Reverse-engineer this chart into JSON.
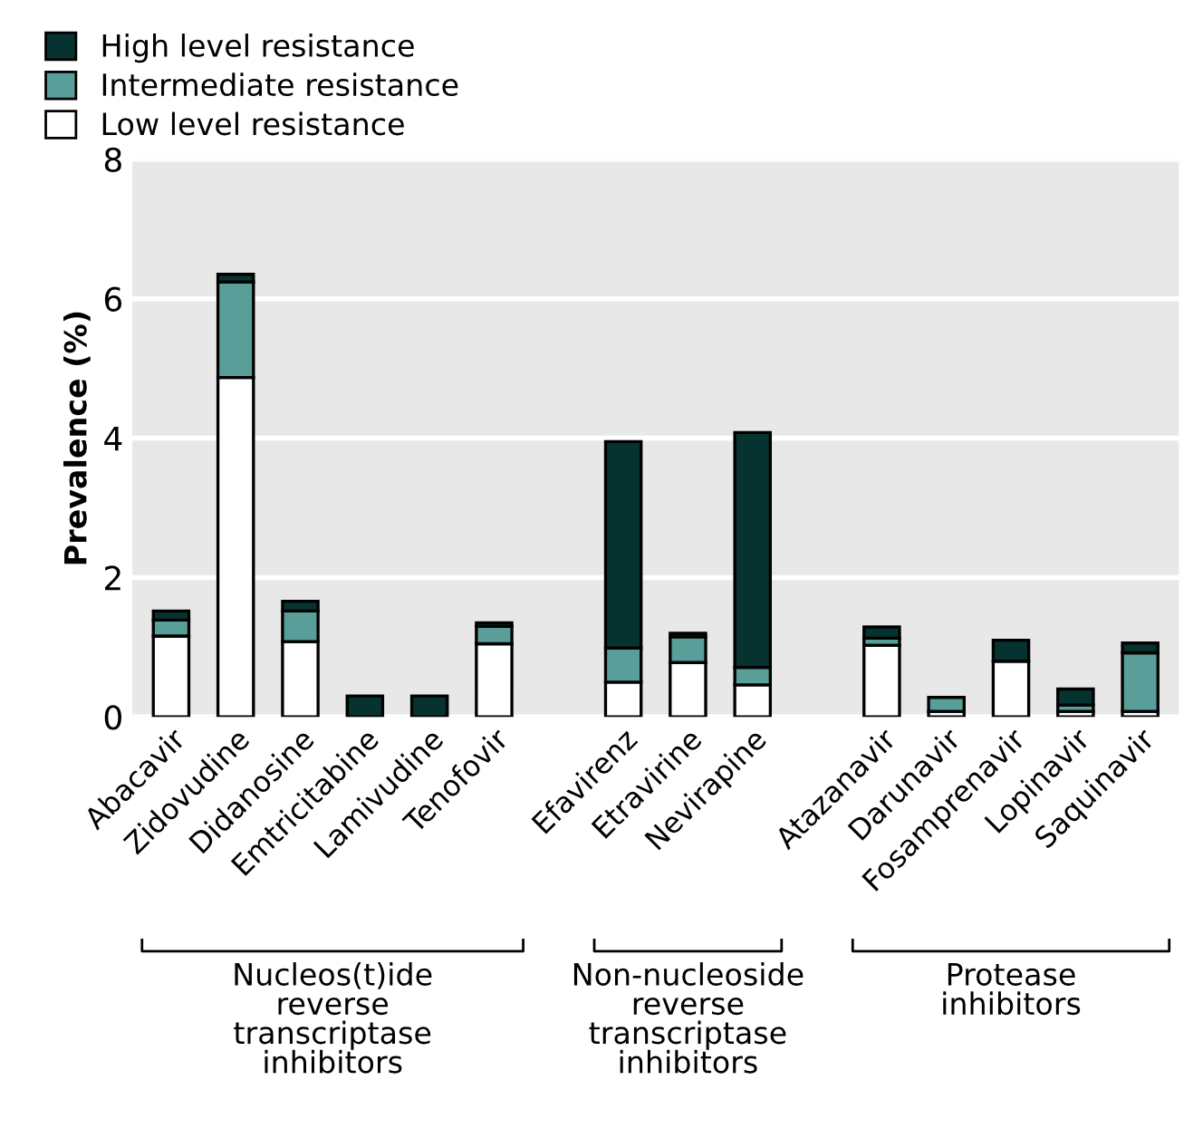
{
  "chart_data": {
    "type": "bar",
    "stacked": true,
    "ylabel": "Prevalence (%)",
    "categories": [
      "Abacavir",
      "Zidovudine",
      "Didanosine",
      "Emtricitabine",
      "Lamivudine",
      "Tenofovir",
      null,
      "Efavirenz",
      "Etravirine",
      "Nevirapine",
      null,
      "Atazanavir",
      "Darunavir",
      "Fosamprenavir",
      "Lopinavir",
      "Saquinavir"
    ],
    "series": [
      {
        "name": "Low level resistance",
        "color": "#ffffff",
        "values": [
          1.16,
          4.87,
          1.08,
          0,
          0,
          1.05,
          null,
          0.5,
          0.78,
          0.46,
          null,
          1.03,
          0.08,
          0.8,
          0.08,
          0.08
        ]
      },
      {
        "name": "Intermediate resistance",
        "color": "#5a9e9a",
        "values": [
          0.23,
          1.37,
          0.44,
          0,
          0,
          0.25,
          null,
          0.49,
          0.37,
          0.25,
          null,
          0.1,
          0.2,
          0,
          0.09,
          0.84
        ]
      },
      {
        "name": "High level resistance",
        "color": "#06332f",
        "values": [
          0.13,
          0.11,
          0.14,
          0.3,
          0.3,
          0.05,
          null,
          2.96,
          0.05,
          3.37,
          null,
          0.16,
          0,
          0.3,
          0.23,
          0.14
        ]
      }
    ],
    "ylim": [
      0,
      8
    ],
    "yticks": [
      0,
      2,
      4,
      6,
      8
    ],
    "grid": "y",
    "legend": "top left",
    "annotations": [
      "Nucleos(t)ide\nreverse\ntranscriptase\ninhibitors",
      "Non-nucleoside\nreverse\ntranscriptase\ninhibitors",
      "Protease\ninhibitors"
    ]
  }
}
